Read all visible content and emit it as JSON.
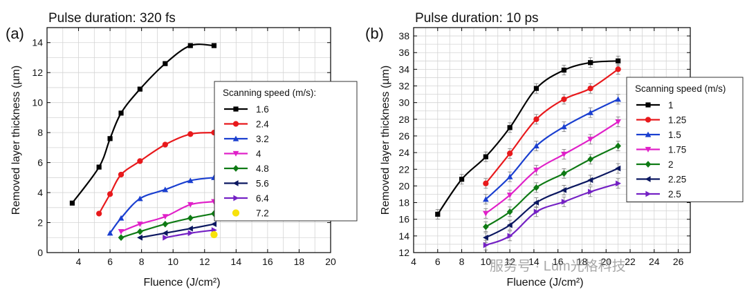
{
  "watermark": "服务号 · Lum光格科技",
  "chart_data": [
    {
      "type": "line",
      "panel_label": "(a)",
      "title": "Pulse duration: 320 fs",
      "xlabel": "Fluence (J/cm²)",
      "ylabel": "Removed layer thickness (µm)",
      "xlim": [
        2,
        20
      ],
      "ylim": [
        0,
        15
      ],
      "xticks": [
        4,
        6,
        8,
        10,
        12,
        14,
        16,
        18,
        20
      ],
      "yticks": [
        0,
        2,
        4,
        6,
        8,
        10,
        12,
        14
      ],
      "grid": true,
      "legend_title": "Scanning speed (m/s):",
      "legend_position": "right",
      "series": [
        {
          "name": "1.6",
          "color": "#000000",
          "marker": "square",
          "x": [
            3.6,
            5.3,
            6.0,
            6.7,
            7.9,
            9.5,
            11.1,
            12.6
          ],
          "y": [
            3.3,
            5.7,
            7.6,
            9.3,
            10.9,
            12.6,
            13.8,
            13.8
          ]
        },
        {
          "name": "2.4",
          "color": "#e8191c",
          "marker": "circle",
          "x": [
            5.3,
            6.0,
            6.7,
            7.9,
            9.5,
            11.1,
            12.6
          ],
          "y": [
            2.6,
            3.9,
            5.2,
            6.1,
            7.2,
            7.9,
            8.0
          ]
        },
        {
          "name": "3.2",
          "color": "#1a3fd0",
          "marker": "triangle-up",
          "x": [
            6.0,
            6.7,
            7.9,
            9.5,
            11.1,
            12.6
          ],
          "y": [
            1.3,
            2.3,
            3.6,
            4.2,
            4.8,
            5.0
          ]
        },
        {
          "name": "4",
          "color": "#e020c8",
          "marker": "triangle-down",
          "x": [
            6.7,
            7.9,
            9.5,
            11.1,
            12.6
          ],
          "y": [
            1.4,
            1.9,
            2.4,
            3.2,
            3.4
          ]
        },
        {
          "name": "4.8",
          "color": "#0e7a14",
          "marker": "diamond",
          "x": [
            6.7,
            7.9,
            9.5,
            11.1,
            12.6
          ],
          "y": [
            1.0,
            1.4,
            1.9,
            2.3,
            2.6
          ]
        },
        {
          "name": "5.6",
          "color": "#0b1760",
          "marker": "triangle-left",
          "x": [
            7.9,
            9.5,
            11.1,
            12.6
          ],
          "y": [
            1.0,
            1.3,
            1.6,
            1.9
          ]
        },
        {
          "name": "6.4",
          "color": "#7421c4",
          "marker": "triangle-right",
          "x": [
            9.5,
            11.1,
            12.6
          ],
          "y": [
            1.0,
            1.3,
            1.5
          ]
        },
        {
          "name": "7.2",
          "color": "#f7e20b",
          "marker": "circle-only",
          "x": [
            12.6
          ],
          "y": [
            1.2
          ]
        }
      ]
    },
    {
      "type": "line",
      "panel_label": "(b)",
      "title": "Pulse duration: 10 ps",
      "xlabel": "Fluence (J/cm²)",
      "ylabel": "Removed layer thickness (µm)",
      "xlim": [
        4,
        27
      ],
      "ylim": [
        12,
        39
      ],
      "xticks": [
        4,
        6,
        8,
        10,
        12,
        14,
        16,
        18,
        20,
        22,
        24,
        26
      ],
      "yticks": [
        12,
        14,
        16,
        18,
        20,
        22,
        24,
        26,
        28,
        30,
        32,
        34,
        36,
        38
      ],
      "grid": true,
      "legend_title": "Scanning speed (m/s)",
      "legend_position": "right",
      "series": [
        {
          "name": "1",
          "color": "#000000",
          "marker": "square",
          "x": [
            6.0,
            8.0,
            10.0,
            12.0,
            14.2,
            16.5,
            18.7,
            21.0
          ],
          "y": [
            16.6,
            20.8,
            23.5,
            27.0,
            31.7,
            33.9,
            34.8,
            35.0
          ]
        },
        {
          "name": "1.25",
          "color": "#e8191c",
          "marker": "circle",
          "x": [
            10.0,
            12.0,
            14.2,
            16.5,
            18.7,
            21.0
          ],
          "y": [
            20.3,
            23.9,
            28.0,
            30.4,
            31.7,
            34.0
          ]
        },
        {
          "name": "1.5",
          "color": "#1a3fd0",
          "marker": "triangle-up",
          "x": [
            10.0,
            12.0,
            14.2,
            16.5,
            18.7,
            21.0
          ],
          "y": [
            18.4,
            21.1,
            24.8,
            27.1,
            28.8,
            30.4
          ]
        },
        {
          "name": "1.75",
          "color": "#e020c8",
          "marker": "triangle-down",
          "x": [
            10.0,
            12.0,
            14.2,
            16.5,
            18.7,
            21.0
          ],
          "y": [
            16.7,
            18.9,
            21.9,
            23.8,
            25.6,
            27.7
          ]
        },
        {
          "name": "2",
          "color": "#0e7a14",
          "marker": "diamond",
          "x": [
            10.0,
            12.0,
            14.2,
            16.5,
            18.7,
            21.0
          ],
          "y": [
            15.1,
            16.9,
            19.8,
            21.5,
            23.2,
            24.8
          ]
        },
        {
          "name": "2.25",
          "color": "#0b1760",
          "marker": "triangle-left",
          "x": [
            10.0,
            12.0,
            14.2,
            16.5,
            18.7,
            21.0
          ],
          "y": [
            13.8,
            15.3,
            18.0,
            19.5,
            20.7,
            22.1
          ]
        },
        {
          "name": "2.5",
          "color": "#7421c4",
          "marker": "triangle-right",
          "x": [
            10.0,
            12.0,
            14.2,
            16.5,
            18.7,
            21.0
          ],
          "y": [
            12.9,
            14.0,
            16.9,
            18.1,
            19.3,
            20.3
          ]
        }
      ]
    }
  ]
}
